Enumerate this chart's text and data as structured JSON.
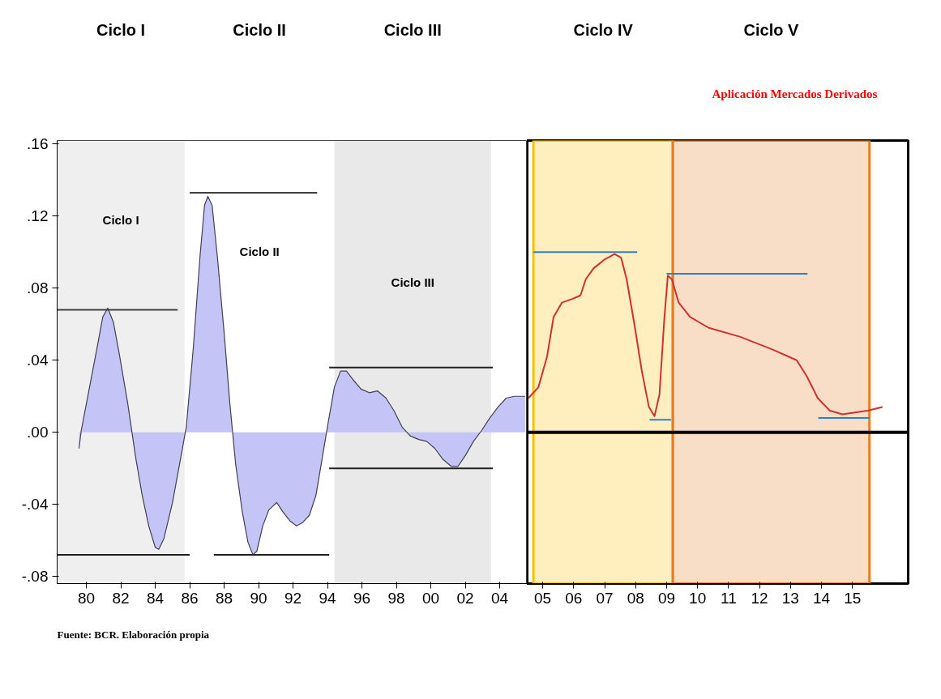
{
  "chart_data": [
    {
      "type": "area",
      "xlim": [
        1978.3,
        2005.6
      ],
      "ylim": [
        -0.084,
        0.162
      ],
      "xticks": [
        {
          "value": 1980,
          "label": "80"
        },
        {
          "value": 1982,
          "label": "82"
        },
        {
          "value": 1984,
          "label": "84"
        },
        {
          "value": 1986,
          "label": "86"
        },
        {
          "value": 1988,
          "label": "88"
        },
        {
          "value": 1990,
          "label": "90"
        },
        {
          "value": 1992,
          "label": "92"
        },
        {
          "value": 1994,
          "label": "94"
        },
        {
          "value": 1996,
          "label": "96"
        },
        {
          "value": 1998,
          "label": "98"
        },
        {
          "value": 2000,
          "label": "00"
        },
        {
          "value": 2002,
          "label": "02"
        },
        {
          "value": 2004,
          "label": "04"
        }
      ],
      "yticks": [
        {
          "value": -0.08,
          "label": "-.08"
        },
        {
          "value": -0.04,
          "label": "-.04"
        },
        {
          "value": 0,
          "label": ".00"
        },
        {
          "value": 0.04,
          "label": ".04"
        },
        {
          "value": 0.08,
          "label": ".08"
        },
        {
          "value": 0.12,
          "label": ".12"
        },
        {
          "value": 0.16,
          "label": ".16"
        }
      ],
      "grid": false,
      "bands": [
        {
          "axis": "x",
          "from": 1978.3,
          "to": 1985.7,
          "label": "Ciclo I",
          "color": "#c0c0c0"
        },
        {
          "axis": "x",
          "from": 1985.7,
          "to": 1994.4,
          "label": "Ciclo II",
          "color": "#ffffff"
        },
        {
          "axis": "x",
          "from": 1994.4,
          "to": 2003.5,
          "label": "Ciclo III",
          "color": "#a8a8a8"
        }
      ],
      "series": [
        {
          "color": "#c4c4f6",
          "x": [
            1979.57,
            1979.7,
            1980.1,
            1980.6,
            1980.95,
            1981.24,
            1981.57,
            1981.9,
            1982.4,
            1982.86,
            1983.24,
            1983.62,
            1984.0,
            1984.2,
            1984.5,
            1985.0,
            1985.48,
            1985.8,
            1986.2,
            1986.6,
            1986.86,
            1987.05,
            1987.3,
            1987.6,
            1988.0,
            1988.33,
            1988.67,
            1989.05,
            1989.38,
            1989.67,
            1989.9,
            1990.24,
            1990.6,
            1991.05,
            1991.4,
            1991.8,
            1992.2,
            1992.57,
            1992.95,
            1993.33,
            1993.7,
            1994.05,
            1994.4,
            1994.76,
            1995.1,
            1995.5,
            1995.95,
            1996.43,
            1996.9,
            1997.4,
            1997.86,
            1998.33,
            1998.8,
            1999.3,
            1999.76,
            2000.24,
            2000.7,
            2001.2,
            2001.57,
            2002.0,
            2002.48,
            2002.95,
            2003.43,
            2003.9,
            2004.38,
            2004.86,
            2005.48
          ],
          "values": [
            -0.009,
            0.001,
            0.021,
            0.046,
            0.064,
            0.069,
            0.061,
            0.044,
            0.016,
            -0.014,
            -0.035,
            -0.052,
            -0.064,
            -0.065,
            -0.059,
            -0.039,
            -0.014,
            0.003,
            0.046,
            0.098,
            0.126,
            0.131,
            0.126,
            0.098,
            0.055,
            0.016,
            -0.018,
            -0.044,
            -0.061,
            -0.068,
            -0.066,
            -0.052,
            -0.043,
            -0.039,
            -0.044,
            -0.049,
            -0.052,
            -0.05,
            -0.046,
            -0.035,
            -0.014,
            0.006,
            0.025,
            0.034,
            0.034,
            0.029,
            0.024,
            0.022,
            0.023,
            0.019,
            0.012,
            0.003,
            -0.002,
            -0.004,
            -0.005,
            -0.009,
            -0.015,
            -0.019,
            -0.019,
            -0.013,
            -0.005,
            0.001,
            0.008,
            0.014,
            0.019,
            0.02,
            0.02
          ]
        },
        {
          "type": "line",
          "color": "#404040",
          "x": [
            1978.3,
            1985.3
          ],
          "values": [
            0.068,
            0.068
          ]
        },
        {
          "type": "line",
          "color": "#202020",
          "x": [
            1978.3,
            1986.0
          ],
          "values": [
            -0.068,
            -0.068
          ]
        },
        {
          "type": "line",
          "color": "#404040",
          "x": [
            1986.0,
            1993.4
          ],
          "values": [
            0.133,
            0.133
          ]
        },
        {
          "type": "line",
          "color": "#202020",
          "x": [
            1987.4,
            1994.1
          ],
          "values": [
            -0.068,
            -0.068
          ]
        },
        {
          "type": "line",
          "color": "#202020",
          "x": [
            1994.1,
            2003.6
          ],
          "values": [
            0.036,
            0.036
          ]
        },
        {
          "type": "line",
          "color": "#202020",
          "x": [
            1994.1,
            2003.6
          ],
          "values": [
            -0.02,
            -0.02
          ]
        }
      ],
      "annotations": [
        "Ciclo I",
        "Ciclo II",
        "Ciclo III",
        "Fuente:  BCR. Elaboración propia"
      ]
    },
    {
      "type": "line",
      "xlim": [
        2004.5,
        2016.8
      ],
      "ylim": [
        -0.084,
        0.162
      ],
      "tick_labels": "x",
      "xticks": [
        {
          "value": 2005,
          "label": "05"
        },
        {
          "value": 2006,
          "label": "06"
        },
        {
          "value": 2007,
          "label": "07"
        },
        {
          "value": 2008,
          "label": "08"
        },
        {
          "value": 2009,
          "label": "09"
        },
        {
          "value": 2010,
          "label": "10"
        },
        {
          "value": 2011,
          "label": "11"
        },
        {
          "value": 2012,
          "label": "12"
        },
        {
          "value": 2013,
          "label": "13"
        },
        {
          "value": 2014,
          "label": "14"
        },
        {
          "value": 2015,
          "label": "15"
        }
      ],
      "grid": false,
      "bands": [
        {
          "axis": "x",
          "from": 2004.7,
          "to": 2009.2,
          "color": "#ffc000"
        },
        {
          "axis": "x",
          "from": 2009.2,
          "to": 2015.55,
          "color": "#e87d1e"
        }
      ],
      "ref_lines": [
        {
          "axis": "y",
          "value": 0,
          "color": "#000000"
        }
      ],
      "series": [
        {
          "color": "#d03030",
          "x": [
            2004.54,
            2004.86,
            2005.14,
            2005.35,
            2005.62,
            2005.95,
            2006.22,
            2006.39,
            2006.64,
            2007.0,
            2007.32,
            2007.53,
            2007.71,
            2007.97,
            2008.2,
            2008.43,
            2008.61,
            2008.77,
            2008.93,
            2009.04,
            2009.17,
            2009.39,
            2009.76,
            2010.36,
            2011.38,
            2012.41,
            2013.2,
            2013.53,
            2013.88,
            2014.27,
            2014.68,
            2015.08,
            2015.49,
            2015.97
          ],
          "values": [
            0.019,
            0.025,
            0.042,
            0.064,
            0.072,
            0.074,
            0.076,
            0.085,
            0.091,
            0.096,
            0.099,
            0.097,
            0.085,
            0.059,
            0.034,
            0.014,
            0.009,
            0.021,
            0.064,
            0.087,
            0.085,
            0.072,
            0.064,
            0.058,
            0.053,
            0.046,
            0.04,
            0.031,
            0.019,
            0.012,
            0.01,
            0.011,
            0.012,
            0.014
          ]
        },
        {
          "color": "#2a7fd4",
          "x": [
            2004.7,
            2008.05
          ],
          "values": [
            0.1,
            0.1
          ]
        },
        {
          "color": "#2a7fd4",
          "x": [
            2009.0,
            2013.55
          ],
          "values": [
            0.088,
            0.088
          ]
        },
        {
          "color": "#2a7fd4",
          "x": [
            2008.45,
            2009.15
          ],
          "values": [
            0.007,
            0.007
          ]
        },
        {
          "color": "#2a7fd4",
          "x": [
            2013.9,
            2015.55
          ],
          "values": [
            0.008,
            0.008
          ]
        }
      ],
      "annotations": [
        "Ciclo IV",
        "Ciclo V",
        "Aplicación Mercados  Derivados"
      ]
    }
  ]
}
